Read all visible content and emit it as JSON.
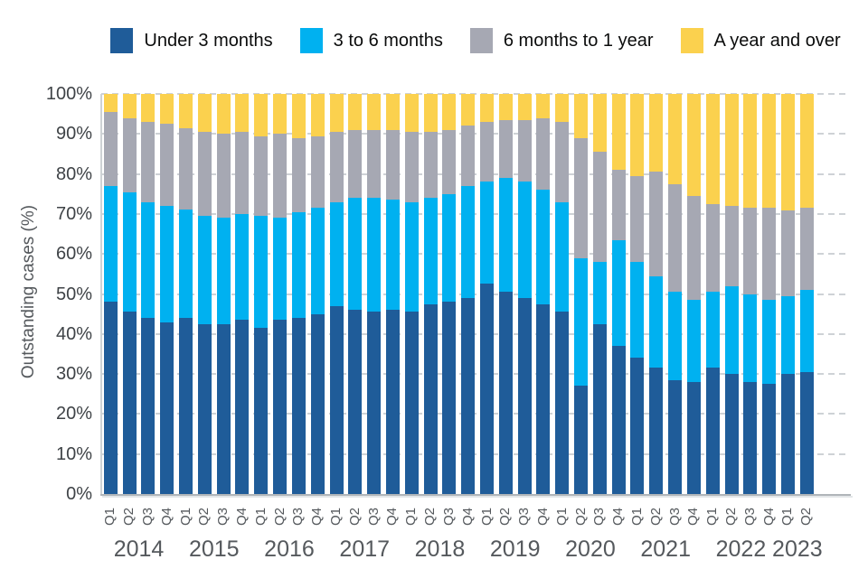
{
  "chart_data": {
    "type": "bar",
    "stacked": true,
    "percent_stacked": true,
    "title": "",
    "ylabel": "Outstanding cases (%)",
    "xlabel": "",
    "ylim": [
      0,
      100
    ],
    "grid": "dashed-horizontal",
    "legend_position": "top",
    "yticks": [
      "0%",
      "10%",
      "20%",
      "30%",
      "40%",
      "50%",
      "60%",
      "70%",
      "80%",
      "90%",
      "100%"
    ],
    "x_quarters": [
      "Q1",
      "Q2",
      "Q3",
      "Q4",
      "Q1",
      "Q2",
      "Q3",
      "Q4",
      "Q1",
      "Q2",
      "Q3",
      "Q4",
      "Q1",
      "Q2",
      "Q3",
      "Q4",
      "Q1",
      "Q2",
      "Q3",
      "Q4",
      "Q1",
      "Q2",
      "Q3",
      "Q4",
      "Q1",
      "Q2",
      "Q3",
      "Q4",
      "Q1",
      "Q2",
      "Q3",
      "Q4",
      "Q1",
      "Q2",
      "Q3",
      "Q4",
      "Q1",
      "Q2"
    ],
    "x_years": [
      {
        "label": "2014",
        "quarters": 4
      },
      {
        "label": "2015",
        "quarters": 4
      },
      {
        "label": "2016",
        "quarters": 4
      },
      {
        "label": "2017",
        "quarters": 4
      },
      {
        "label": "2018",
        "quarters": 4
      },
      {
        "label": "2019",
        "quarters": 4
      },
      {
        "label": "2020",
        "quarters": 4
      },
      {
        "label": "2021",
        "quarters": 4
      },
      {
        "label": "2022",
        "quarters": 4
      },
      {
        "label": "2023",
        "quarters": 2
      }
    ],
    "series": [
      {
        "name": "Under 3 months",
        "color": "#1f5c99",
        "values": [
          48,
          45.5,
          44,
          43,
          44,
          42.5,
          42.5,
          43.5,
          41.5,
          43.5,
          44,
          45,
          47,
          46,
          45.5,
          46,
          45.5,
          47.5,
          48,
          49,
          52.5,
          50.5,
          49,
          47.5,
          45.5,
          27,
          42.5,
          37,
          34,
          31.5,
          28.5,
          28,
          31.5,
          30,
          28,
          27.5,
          30,
          30.5
        ]
      },
      {
        "name": "3 to 6 months",
        "color": "#00b1f0",
        "values": [
          29,
          30,
          29,
          29,
          27,
          27,
          26.5,
          26.5,
          28,
          25.5,
          26.5,
          26.5,
          26,
          28,
          28.5,
          27.5,
          27.5,
          26.5,
          27,
          28,
          25.5,
          28.5,
          29,
          28.5,
          27.5,
          32,
          15.5,
          26.5,
          24,
          23,
          22,
          20.5,
          19,
          22,
          22,
          21,
          19.5,
          20.5
        ]
      },
      {
        "name": "6 months to 1 year",
        "color": "#a6a8b3",
        "values": [
          18.5,
          18.5,
          20,
          20.5,
          20.5,
          21,
          21,
          20.5,
          20,
          21,
          18.5,
          18,
          17.5,
          17,
          17,
          17.5,
          17.5,
          16.5,
          16,
          15,
          15,
          14.5,
          15.5,
          18,
          20,
          30,
          27.5,
          17.5,
          21.5,
          26,
          27,
          26,
          22,
          20,
          21.5,
          23,
          21.5,
          20.5
        ]
      },
      {
        "name": "A year and over",
        "color": "#fbd14e",
        "values": [
          4.5,
          6,
          7,
          7.5,
          8.5,
          9.5,
          10,
          9.5,
          10.5,
          10,
          11,
          10.5,
          9.5,
          9,
          9,
          9,
          9.5,
          9.5,
          9,
          8,
          7,
          6.5,
          6.5,
          6,
          7,
          11,
          14.5,
          19,
          20.5,
          19.5,
          22.5,
          25.5,
          27.5,
          28,
          28.5,
          28.5,
          29,
          28.5
        ]
      }
    ]
  }
}
